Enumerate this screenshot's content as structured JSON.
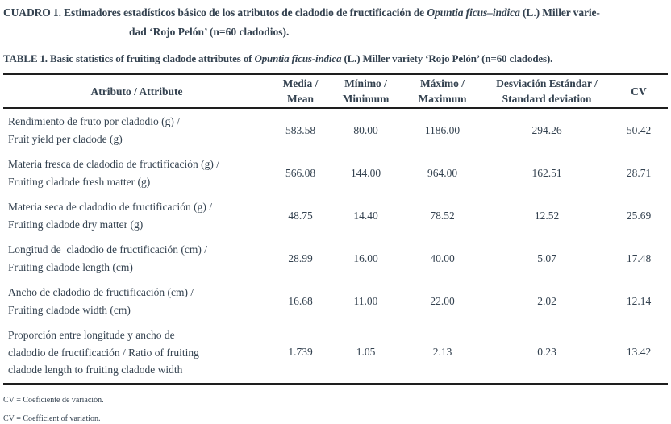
{
  "caption_es": {
    "label": "CUADRO 1.",
    "line1_pre": "Estimadores estadísticos básico de los atributos de cladodio de fructificación de",
    "line1_italic": "Opuntia ficus–indica",
    "line1_post": "(L.) Miller varie-",
    "line2": "dad ‘Rojo Pelón’ (n=60 cladodios)."
  },
  "caption_en": {
    "label": "TABLE 1.",
    "pre": "Basic statistics of fruiting cladode attributes of",
    "italic": "Opuntia ficus-indica",
    "post": "(L.) Miller variety ‘Rojo Pelón’ (n=60 cladodes)."
  },
  "table": {
    "headers": {
      "attribute": "Atributo / Attribute",
      "mean": [
        "Media /",
        "Mean"
      ],
      "min": [
        "Mínimo /",
        "Minimum"
      ],
      "max": [
        "Máximo /",
        "Maximum"
      ],
      "sd": [
        "Desviación Estándar /",
        "Standard deviation"
      ],
      "cv": "CV"
    },
    "rows": [
      {
        "attribute_lines": [
          "Rendimiento de fruto por cladodio (g) /",
          "Fruit yield per cladode (g)"
        ],
        "mean": "583.58",
        "min": "80.00",
        "max": "1186.00",
        "sd": "294.26",
        "cv": "50.42"
      },
      {
        "attribute_lines": [
          "Materia fresca de cladodio de fructificación (g) /",
          "Fruiting cladode fresh matter (g)"
        ],
        "mean": "566.08",
        "min": "144.00",
        "max": "964.00",
        "sd": "162.51",
        "cv": "28.71"
      },
      {
        "attribute_lines": [
          "Materia seca de cladodio de fructificación (g) /",
          "Fruiting cladode dry matter (g)"
        ],
        "mean": "48.75",
        "min": "14.40",
        "max": "78.52",
        "sd": "12.52",
        "cv": "25.69"
      },
      {
        "attribute_lines": [
          "Longitud de  cladodio de fructificación (cm) /",
          "Fruiting cladode length (cm)"
        ],
        "mean": "28.99",
        "min": "16.00",
        "max": "40.00",
        "sd": "5.07",
        "cv": "17.48"
      },
      {
        "attribute_lines": [
          "Ancho de cladodio de fructificación (cm) /",
          "Fruiting cladode width (cm)"
        ],
        "mean": "16.68",
        "min": "11.00",
        "max": "22.00",
        "sd": "2.02",
        "cv": "12.14"
      },
      {
        "attribute_lines": [
          "Proporción entre longitude y ancho de",
          "cladodio de fructificación / Ratio of fruiting",
          "cladode length to fruiting cladode width"
        ],
        "mean": "1.739",
        "min": "1.05",
        "max": "2.13",
        "sd": "0.23",
        "cv": "13.42"
      }
    ]
  },
  "footnotes": {
    "es": "CV = Coeficiente de variación.",
    "en": "CV = Coefficient of variation."
  },
  "colors": {
    "ink": "#344250",
    "rule": "#1e1e1e",
    "background": "#ffffff"
  }
}
